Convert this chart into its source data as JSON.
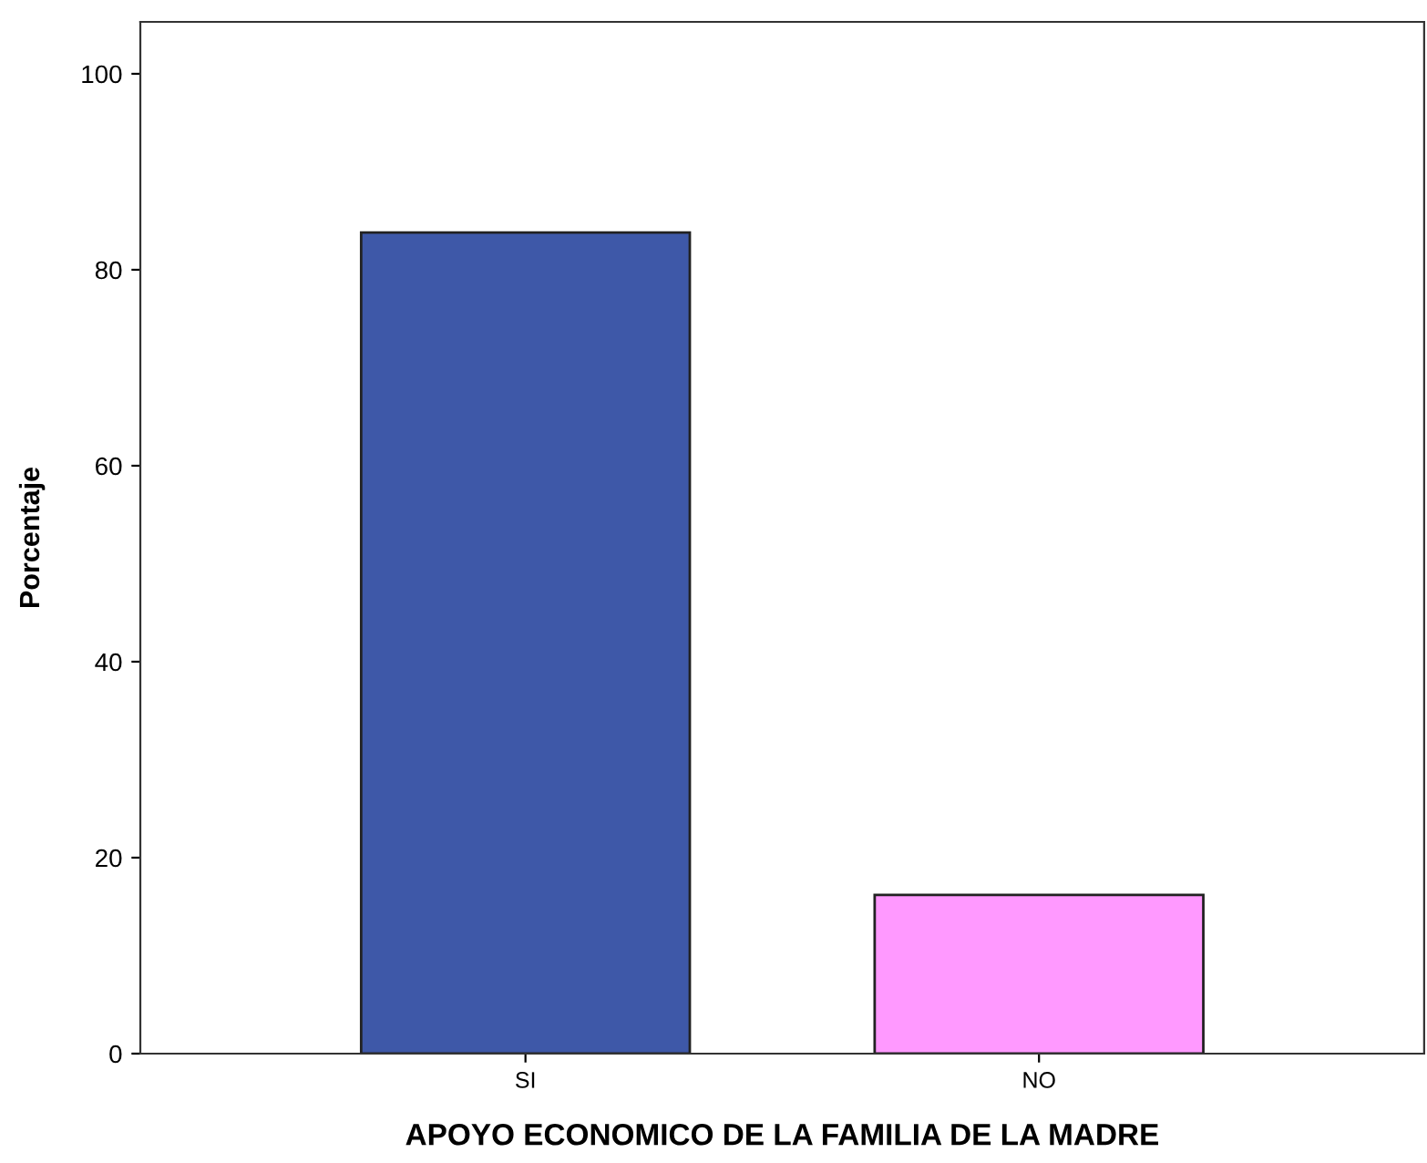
{
  "chart_data": {
    "type": "bar",
    "xlabel": "APOYO ECONOMICO DE LA FAMILIA DE LA MADRE",
    "ylabel": "Porcentaje",
    "categories": [
      "SI",
      "NO"
    ],
    "values": [
      83.8,
      16.2
    ],
    "colors": [
      "#3e58a8",
      "#ff99ff"
    ],
    "ylim": [
      0,
      105.3
    ],
    "yticks": [
      0,
      20,
      40,
      60,
      80,
      100
    ],
    "grid": false,
    "legend": false
  }
}
